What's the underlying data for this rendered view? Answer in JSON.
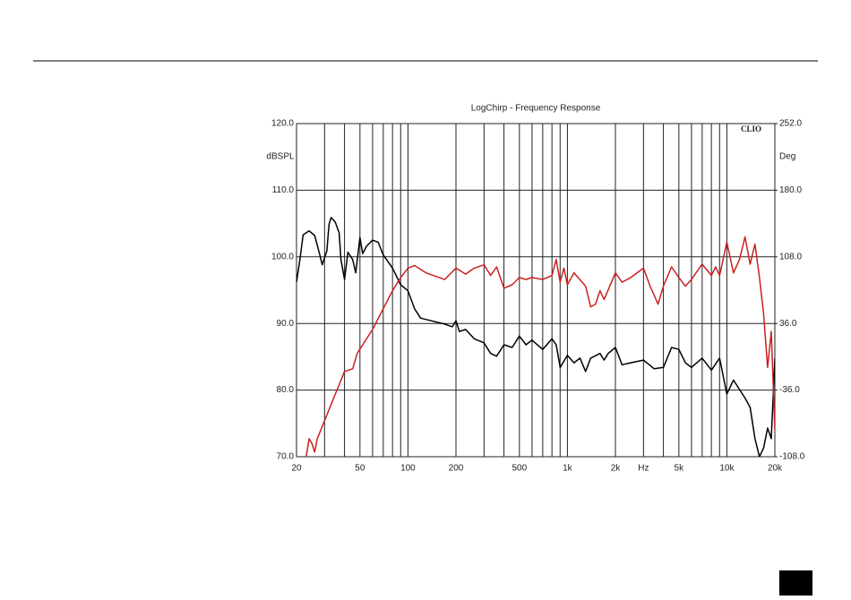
{
  "chart_data": {
    "type": "line",
    "title": "LogChirp - Frequency Response",
    "annotation": "CLIO",
    "ylabel": "dBSPL",
    "y2label": "Deg",
    "xscale": "log",
    "grid": true,
    "xlim": [
      20,
      20000
    ],
    "ylim": [
      70,
      120
    ],
    "y2lim": [
      -108,
      252
    ],
    "xticks": [
      20,
      50,
      100,
      200,
      500,
      {
        "value": 1000,
        "label": "1k"
      },
      {
        "value": 2000,
        "label": "2k"
      },
      {
        "value": 3000,
        "label": "Hz"
      },
      {
        "value": 5000,
        "label": "5k"
      },
      {
        "value": 10000,
        "label": "10k"
      },
      {
        "value": 20000,
        "label": "20k"
      }
    ],
    "xminor": [
      30,
      40,
      60,
      70,
      80,
      90,
      300,
      400,
      600,
      700,
      800,
      900,
      4000,
      6000,
      7000,
      8000,
      9000
    ],
    "yticks": [
      {
        "value": 70,
        "label": "70.0"
      },
      {
        "value": 80,
        "label": "80.0"
      },
      {
        "value": 90,
        "label": "90.0"
      },
      {
        "value": 100,
        "label": "100.0"
      },
      {
        "value": 110,
        "label": "110.0"
      },
      {
        "value": 120,
        "label": "120.0"
      }
    ],
    "y2ticks": [
      {
        "value": -108,
        "label": "-108.0"
      },
      {
        "value": -36,
        "label": "-36.0"
      },
      {
        "value": 36,
        "label": "36.0"
      },
      {
        "value": 108,
        "label": "108.0"
      },
      {
        "value": 180,
        "label": "180.0"
      },
      {
        "value": 252,
        "label": "252.0"
      }
    ],
    "series": [
      {
        "color": "#000000",
        "x": [
          20,
          21,
          22,
          24,
          26,
          28,
          29,
          31,
          32,
          33,
          35,
          37,
          38,
          40,
          42,
          45,
          47,
          50,
          52,
          55,
          60,
          65,
          70,
          80,
          90,
          100,
          110,
          120,
          140,
          170,
          190,
          200,
          210,
          230,
          260,
          300,
          330,
          360,
          400,
          450,
          500,
          550,
          600,
          700,
          800,
          850,
          900,
          1000,
          1100,
          1200,
          1300,
          1400,
          1600,
          1700,
          1800,
          2000,
          2200,
          2500,
          3000,
          3500,
          4000,
          4500,
          5000,
          5500,
          6000,
          7000,
          8000,
          9000,
          10000,
          11000,
          12000,
          13000,
          14000,
          15000,
          16000,
          17000,
          18000,
          19000,
          20000
        ],
        "values": [
          96.2,
          99.6,
          103.3,
          103.9,
          103.2,
          100.3,
          98.8,
          100.9,
          104.9,
          105.9,
          105.2,
          103.6,
          99.6,
          96.6,
          100.7,
          99.6,
          97.6,
          102.9,
          100.5,
          101.6,
          102.5,
          102.2,
          100.3,
          98.3,
          95.8,
          94.9,
          92.2,
          90.8,
          90.4,
          89.9,
          89.5,
          90.4,
          88.8,
          89.1,
          87.7,
          87.1,
          85.5,
          85.1,
          86.8,
          86.4,
          88.1,
          86.8,
          87.5,
          86.1,
          87.7,
          86.8,
          83.4,
          85.2,
          84.1,
          84.8,
          82.8,
          84.8,
          85.5,
          84.5,
          85.5,
          86.4,
          83.8,
          84.1,
          84.5,
          83.2,
          83.4,
          86.4,
          86.1,
          84.1,
          83.4,
          84.8,
          83.0,
          84.8,
          79.4,
          81.5,
          80.1,
          78.8,
          77.4,
          72.7,
          70,
          71.3,
          74.3,
          72.7,
          84.8
        ]
      },
      {
        "color": "#cc1f1f",
        "x": [
          23,
          24,
          25,
          26,
          27,
          30,
          35,
          40,
          45,
          48,
          52,
          60,
          70,
          80,
          90,
          100,
          110,
          130,
          170,
          200,
          230,
          260,
          300,
          330,
          360,
          400,
          450,
          500,
          550,
          600,
          700,
          800,
          850,
          900,
          950,
          1000,
          1100,
          1300,
          1400,
          1500,
          1600,
          1700,
          2000,
          2200,
          2500,
          3000,
          3300,
          3700,
          4000,
          4500,
          5000,
          5500,
          6000,
          7000,
          8000,
          8500,
          9000,
          10000,
          11000,
          12000,
          13000,
          14000,
          15000,
          16000,
          17000,
          18000,
          19000,
          20000
        ],
        "values": [
          70,
          72.7,
          72.0,
          70.7,
          72.7,
          75.4,
          79.4,
          82.8,
          83.2,
          85.5,
          86.8,
          89.1,
          92.2,
          94.9,
          96.9,
          98.3,
          98.7,
          97.6,
          96.6,
          98.3,
          97.4,
          98.3,
          98.8,
          97.2,
          98.5,
          95.3,
          95.8,
          96.9,
          96.6,
          96.9,
          96.6,
          97.2,
          99.6,
          96.2,
          98.3,
          95.8,
          97.6,
          95.6,
          92.5,
          92.9,
          94.9,
          93.6,
          97.6,
          96.2,
          96.9,
          98.3,
          95.6,
          92.9,
          95.6,
          98.5,
          96.9,
          95.6,
          96.6,
          98.9,
          97.2,
          98.5,
          97.2,
          102.2,
          97.6,
          99.6,
          103.0,
          98.9,
          101.9,
          96.9,
          91.5,
          83.4,
          88.8,
          74.0
        ]
      }
    ]
  }
}
